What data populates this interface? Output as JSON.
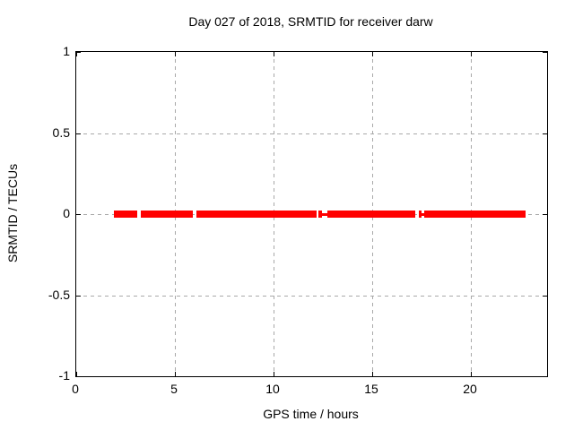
{
  "chart_data": {
    "type": "line",
    "title": "Day 027 of 2018, SRMTID for receiver darw",
    "xlabel": "GPS time / hours",
    "ylabel": "SRMTID / TECUs",
    "xlim": [
      0,
      24
    ],
    "ylim": [
      -1,
      1
    ],
    "grid": true,
    "legend": "none",
    "xticks": [
      {
        "value": 0,
        "label": "0"
      },
      {
        "value": 5,
        "label": "5"
      },
      {
        "value": 10,
        "label": "10"
      },
      {
        "value": 15,
        "label": "15"
      },
      {
        "value": 20,
        "label": "20"
      }
    ],
    "yticks": [
      {
        "value": 1,
        "label": "1"
      },
      {
        "value": 0.5,
        "label": "0.5"
      },
      {
        "value": 0,
        "label": "0"
      },
      {
        "value": -0.5,
        "label": "-0.5"
      },
      {
        "value": -1,
        "label": "-1"
      }
    ],
    "series": [
      {
        "name": "SRMTID",
        "color": "#ff0000",
        "y_value": 0,
        "segments": [
          {
            "start": 1.91,
            "end": 3.09,
            "style": "thick"
          },
          {
            "start": 3.27,
            "end": 5.91,
            "style": "thick"
          },
          {
            "start": 6.09,
            "end": 12.17,
            "style": "thick"
          },
          {
            "start": 12.29,
            "end": 12.47,
            "style": "thick"
          },
          {
            "start": 12.47,
            "end": 12.74,
            "style": "thin"
          },
          {
            "start": 12.74,
            "end": 17.19,
            "style": "thick"
          },
          {
            "start": 17.35,
            "end": 17.5,
            "style": "thick"
          },
          {
            "start": 17.5,
            "end": 17.65,
            "style": "thin"
          },
          {
            "start": 17.65,
            "end": 22.77,
            "style": "thick"
          }
        ]
      }
    ]
  },
  "colors": {
    "background": "#ffffff",
    "border": "#000000",
    "grid": "#a9a9a9",
    "text": "#000000",
    "series": "#ff0000"
  }
}
